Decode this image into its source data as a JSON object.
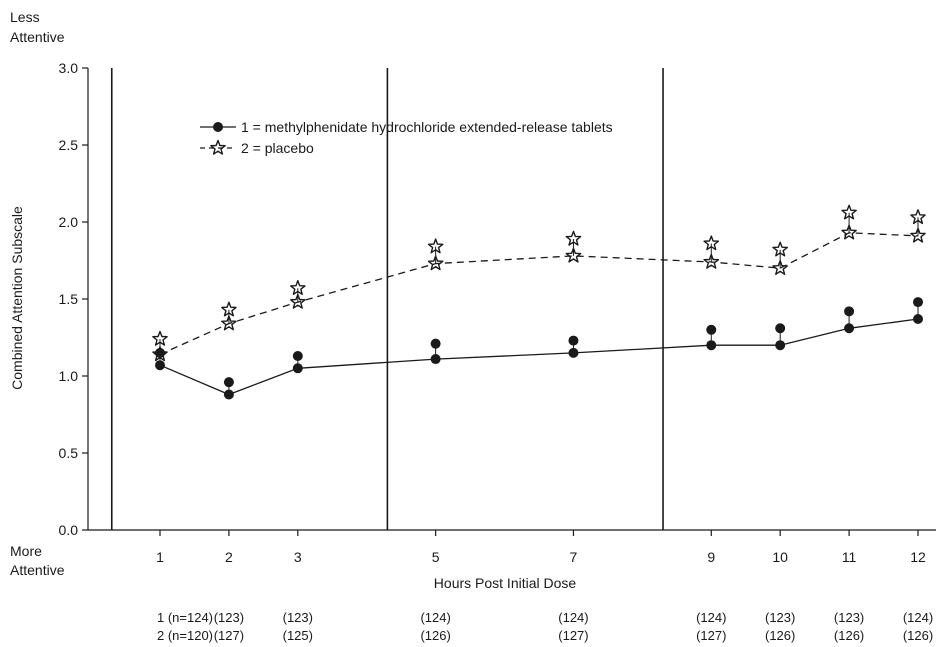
{
  "chart_data": {
    "type": "line",
    "top_label": [
      "Less",
      "Attentive"
    ],
    "bottom_label": [
      "More",
      "Attentive"
    ],
    "xlabel": "Hours Post Initial Dose",
    "ylabel": "Combined Attention Subscale",
    "ylim": [
      0.0,
      3.0
    ],
    "yticks": [
      "0.0",
      "0.5",
      "1.0",
      "1.5",
      "2.0",
      "2.5",
      "3.0"
    ],
    "x": [
      1,
      2,
      3,
      5,
      7,
      9,
      10,
      11,
      12
    ],
    "x_tick_labels": [
      "1",
      "2",
      "3",
      "5",
      "7",
      "9",
      "10",
      "11",
      "12"
    ],
    "phase_dividers_after_hours": [
      0.3,
      4.3,
      8.3
    ],
    "legend": "top-left",
    "series": [
      {
        "name": "1 = methylphenidate hydrochloride extended-release tablets",
        "legend_key": "1",
        "marker": "circle",
        "line_style": "solid",
        "values": [
          1.07,
          0.88,
          1.05,
          1.11,
          1.15,
          1.2,
          1.2,
          1.31,
          1.37
        ],
        "error_upper": [
          1.15,
          0.96,
          1.13,
          1.21,
          1.23,
          1.3,
          1.31,
          1.42,
          1.48
        ]
      },
      {
        "name": "2 = placebo",
        "legend_key": "2",
        "marker": "star",
        "line_style": "dashed",
        "values": [
          1.14,
          1.34,
          1.48,
          1.73,
          1.78,
          1.74,
          1.7,
          1.93,
          1.91
        ],
        "error_upper": [
          1.24,
          1.43,
          1.57,
          1.84,
          1.89,
          1.86,
          1.82,
          2.06,
          2.03
        ]
      }
    ],
    "n_rows": [
      {
        "prefix": "1 (n=124)",
        "counts": [
          "(123)",
          "(123)",
          "(124)",
          "(124)",
          "(124)",
          "(123)",
          "(123)",
          "(124)"
        ]
      },
      {
        "prefix": "2 (n=120)",
        "counts": [
          "(127)",
          "(125)",
          "(126)",
          "(127)",
          "(127)",
          "(126)",
          "(126)",
          "(126)"
        ]
      }
    ]
  }
}
